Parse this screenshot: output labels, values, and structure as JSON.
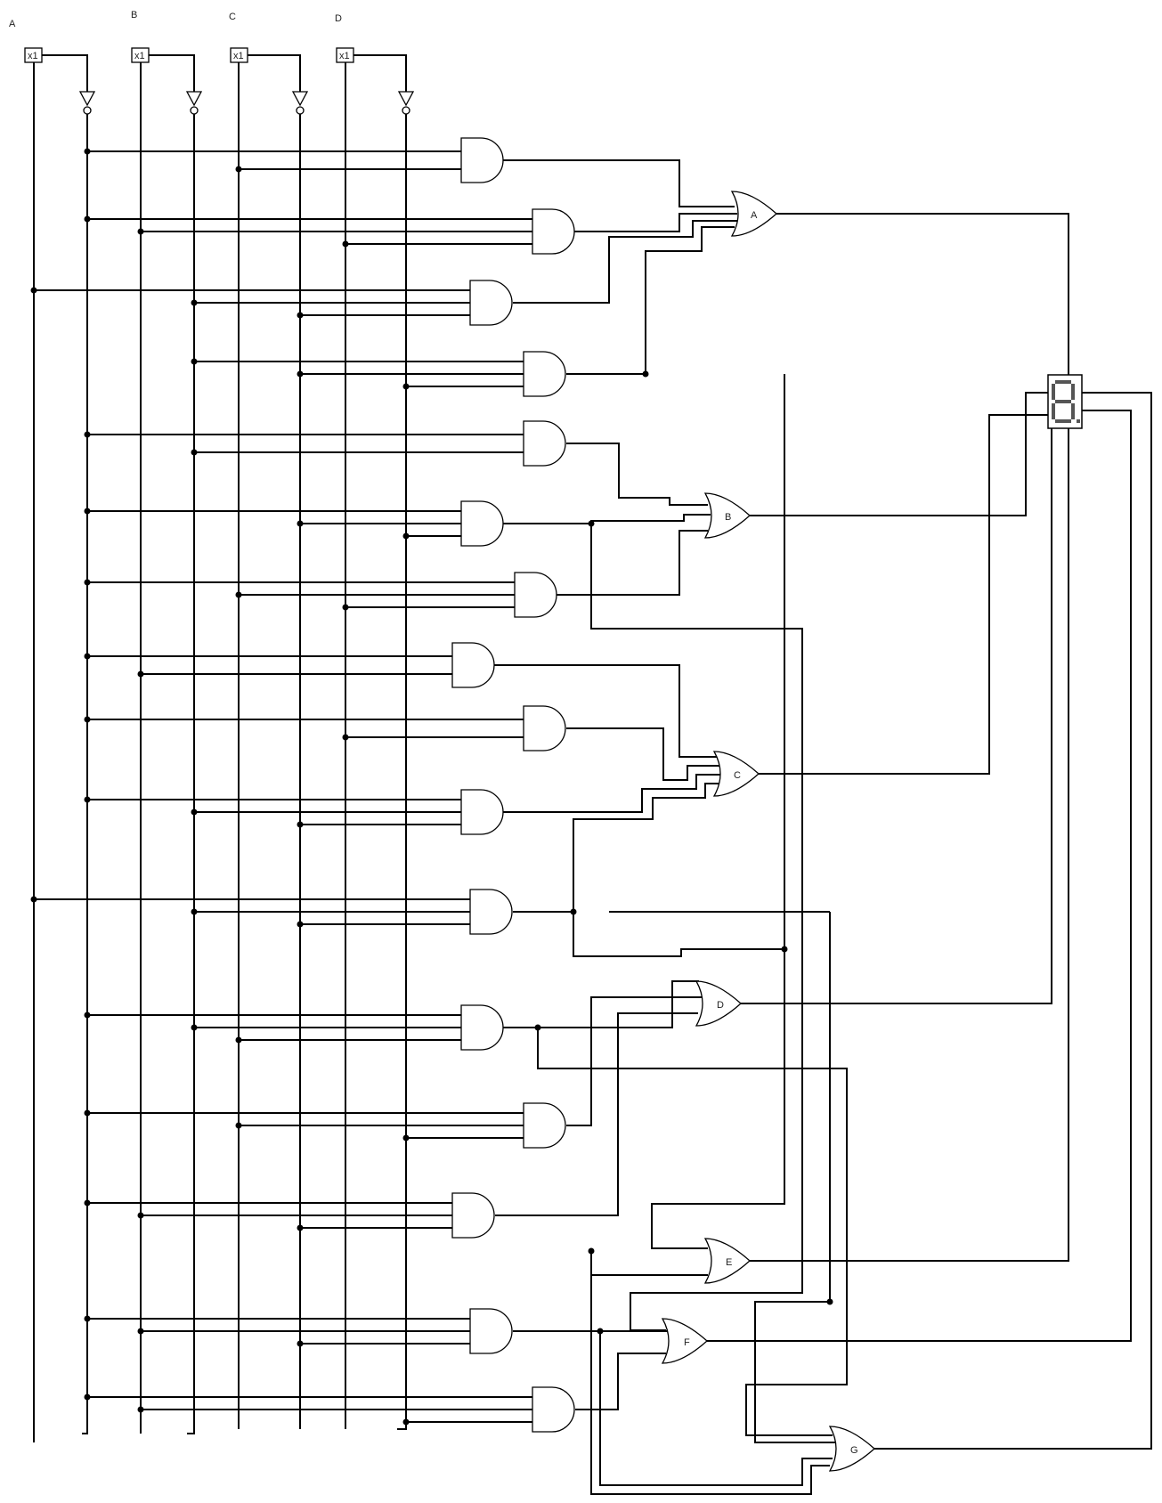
{
  "inputs": [
    {
      "label": "A",
      "buffer": "x1"
    },
    {
      "label": "B",
      "buffer": "x1"
    },
    {
      "label": "C",
      "buffer": "x1"
    },
    {
      "label": "D",
      "buffer": "x1"
    }
  ],
  "or_gates": [
    {
      "label": "A"
    },
    {
      "label": "B"
    },
    {
      "label": "C"
    },
    {
      "label": "D"
    },
    {
      "label": "E"
    },
    {
      "label": "F"
    },
    {
      "label": "G"
    }
  ],
  "display": {
    "name": "seven-segment-display"
  }
}
